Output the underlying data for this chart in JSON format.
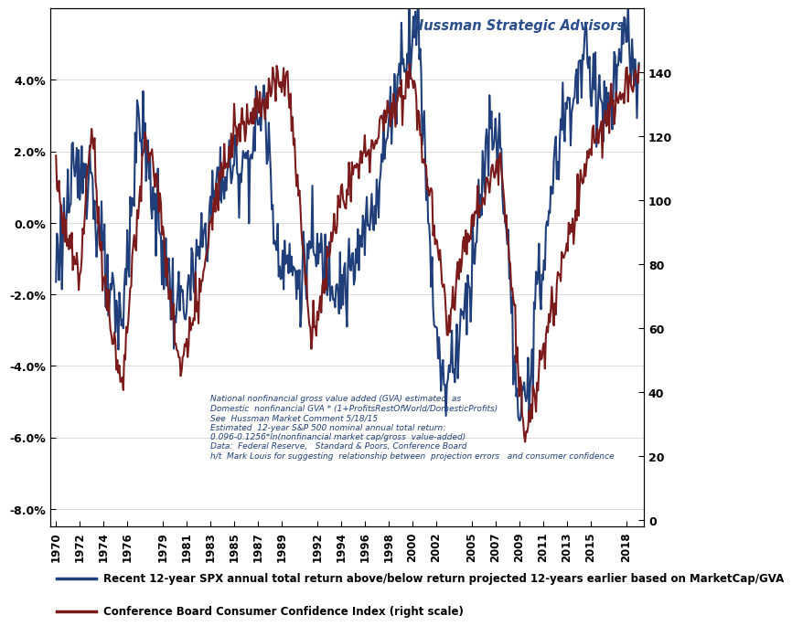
{
  "title": "Hussman Strategic Advisors",
  "title_color": "#2B4F8C",
  "left_ylim": [
    -0.085,
    0.06
  ],
  "right_ylim": [
    -2.0,
    160
  ],
  "left_yticks": [
    -0.08,
    -0.06,
    -0.04,
    -0.02,
    0.0,
    0.02,
    0.04
  ],
  "left_yticklabels": [
    "-8.0%",
    "-6.0%",
    "-4.0%",
    "-2.0%",
    "0.0%",
    "2.0%",
    "4.0%"
  ],
  "right_yticks": [
    0,
    20,
    40,
    60,
    80,
    100,
    120,
    140
  ],
  "xtick_years": [
    1970,
    1972,
    1974,
    1976,
    1979,
    1981,
    1983,
    1985,
    1987,
    1989,
    1992,
    1994,
    1996,
    1998,
    2000,
    2002,
    2005,
    2007,
    2009,
    2011,
    2013,
    2015,
    2018
  ],
  "line1_color": "#1F3E7A",
  "line2_color": "#7B1A1A",
  "annotation_text": "National nonfinancial gross value added (GVA) estimated  as\nDomestic  nonfinancial GVA * (1+ProfitsRestOfWorld/DomesticProfits)\nSee  Hussman Market Comment 5/18/15\nEstimated  12-year S&P 500 nominal annual total return:\n0.096-0.1256*ln(nonfinancial market cap/gross  value-added)\nData:  Federal Reserve,   Standard & Poors, Conference Board\nh/t  Mark Louis for suggesting  relationship between  projection errors   and consumer confidence",
  "annotation_color": "#1F3E7A",
  "legend1_text": "Recent 12-year SPX annual total return above/below return projected 12-years earlier based on MarketCap/GVA",
  "legend2_text": "Conference Board Consumer Confidence Index (right scale)",
  "legend_line1_color": "#1F3E7A",
  "legend_line2_color": "#7B1A1A",
  "bg_color": "#FFFFFF",
  "plot_bg_color": "#FFFFFF",
  "xlim": [
    1969.5,
    2019.5
  ],
  "line_lw": 1.5
}
